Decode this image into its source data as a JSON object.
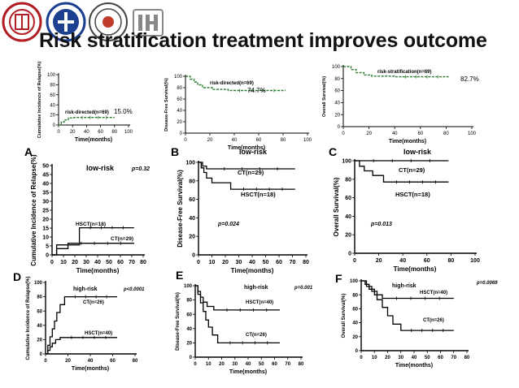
{
  "slide": {
    "title": "Risk stratification treatment improves outcome",
    "logos": [
      {
        "name": "peking-university-seal",
        "color": "#b01e23",
        "text": "PEKING UNIVERSITY 1898"
      },
      {
        "name": "peking-university-people-hospital-seal",
        "color": "#1d3f8f",
        "text": "北京大学人民医院"
      },
      {
        "name": "institute-of-hematology-seal",
        "color": "#333333",
        "text": "INSTITUTE OF HEMATOLOGY PEKING UNIVERSITY"
      }
    ]
  },
  "chart_data": [
    {
      "id": "top1",
      "type": "line",
      "title": "",
      "xlabel": "Time(months)",
      "ylabel": "Cumulative Incidence of Relapse(%)",
      "xlim": [
        0,
        100
      ],
      "ylim": [
        0,
        100
      ],
      "xticks": [
        0,
        20,
        40,
        60,
        80,
        100
      ],
      "yticks": [
        0,
        20,
        40,
        60,
        80,
        100
      ],
      "series": [
        {
          "name": "risk-directed(n=69)",
          "color": "#2e7d32",
          "step": [
            [
              0,
              0
            ],
            [
              4,
              0
            ],
            [
              4,
              6
            ],
            [
              8,
              6
            ],
            [
              8,
              10
            ],
            [
              14,
              10
            ],
            [
              14,
              14
            ],
            [
              22,
              14
            ],
            [
              22,
              15
            ],
            [
              80,
              15
            ]
          ]
        }
      ],
      "annotations": [
        "15.0%"
      ]
    },
    {
      "id": "top2",
      "type": "line",
      "title": "",
      "xlabel": "Time(months)",
      "ylabel": "Disease-Free Survival(%)",
      "xlim": [
        0,
        100
      ],
      "ylim": [
        0,
        100
      ],
      "xticks": [
        0,
        20,
        40,
        60,
        80,
        100
      ],
      "yticks": [
        0,
        20,
        40,
        60,
        80,
        100
      ],
      "series": [
        {
          "name": "risk-directed(n=69)",
          "color": "#2e7d32",
          "step": [
            [
              0,
              100
            ],
            [
              4,
              100
            ],
            [
              4,
              95
            ],
            [
              7,
              95
            ],
            [
              7,
              90
            ],
            [
              10,
              90
            ],
            [
              10,
              85
            ],
            [
              14,
              85
            ],
            [
              14,
              80
            ],
            [
              22,
              80
            ],
            [
              22,
              77
            ],
            [
              35,
              77
            ],
            [
              35,
              75
            ],
            [
              82,
              75
            ]
          ]
        }
      ],
      "annotations": [
        "74.7%"
      ]
    },
    {
      "id": "top3",
      "type": "line",
      "title": "",
      "xlabel": "Time(months)",
      "ylabel": "Overall Survival(%)",
      "xlim": [
        0,
        100
      ],
      "ylim": [
        0,
        100
      ],
      "xticks": [
        0,
        20,
        40,
        60,
        80,
        100
      ],
      "yticks": [
        0,
        20,
        40,
        60,
        80,
        100
      ],
      "series": [
        {
          "name": "risk-stratification(n=69)",
          "color": "#2e7d32",
          "step": [
            [
              0,
              100
            ],
            [
              6,
              100
            ],
            [
              6,
              95
            ],
            [
              10,
              95
            ],
            [
              10,
              90
            ],
            [
              16,
              90
            ],
            [
              16,
              86
            ],
            [
              22,
              86
            ],
            [
              22,
              84
            ],
            [
              40,
              84
            ],
            [
              40,
              83
            ],
            [
              82,
              83
            ]
          ]
        }
      ],
      "annotations": [
        "82.7%"
      ]
    },
    {
      "id": "A",
      "panel": "A",
      "type": "line",
      "title": "low-risk",
      "pvalue": "p=0.32",
      "xlabel": "Time(months)",
      "ylabel": "Cumulative Incidence of Relapse(%)",
      "xlim": [
        0,
        80
      ],
      "ylim": [
        0,
        50
      ],
      "xticks": [
        0,
        10,
        20,
        30,
        40,
        50,
        60,
        70,
        80
      ],
      "yticks": [
        0,
        5,
        10,
        15,
        20,
        25,
        30,
        35,
        40,
        45,
        50
      ],
      "series": [
        {
          "name": "HSCT(n=18)",
          "step": [
            [
              0,
              0
            ],
            [
              4,
              0
            ],
            [
              4,
              5.6
            ],
            [
              24,
              5.6
            ],
            [
              24,
              15.2
            ],
            [
              72,
              15.2
            ]
          ]
        },
        {
          "name": "CT(n=29)",
          "step": [
            [
              0,
              0
            ],
            [
              4,
              0
            ],
            [
              4,
              3.5
            ],
            [
              14,
              3.5
            ],
            [
              14,
              6.5
            ],
            [
              72,
              6.5
            ]
          ]
        }
      ]
    },
    {
      "id": "B",
      "panel": "B",
      "type": "line",
      "title": "low-risk",
      "pvalue": "p=0.024",
      "xlabel": "Time(months)",
      "ylabel": "Disease-Free Survival(%)",
      "xlim": [
        0,
        80
      ],
      "ylim": [
        0,
        100
      ],
      "xticks": [
        0,
        10,
        20,
        30,
        40,
        50,
        60,
        70,
        80
      ],
      "yticks": [
        0,
        20,
        40,
        60,
        80,
        100
      ],
      "series": [
        {
          "name": "CT(n=29)",
          "step": [
            [
              0,
              100
            ],
            [
              3,
              100
            ],
            [
              3,
              96
            ],
            [
              6,
              96
            ],
            [
              6,
              93
            ],
            [
              72,
              93
            ]
          ]
        },
        {
          "name": "HSCT(n=18)",
          "step": [
            [
              0,
              100
            ],
            [
              2,
              100
            ],
            [
              2,
              94
            ],
            [
              4,
              94
            ],
            [
              4,
              89
            ],
            [
              6,
              89
            ],
            [
              6,
              83
            ],
            [
              10,
              83
            ],
            [
              10,
              78
            ],
            [
              24,
              78
            ],
            [
              24,
              71
            ],
            [
              72,
              71
            ]
          ]
        }
      ]
    },
    {
      "id": "C",
      "panel": "C",
      "type": "line",
      "title": "low-risk",
      "pvalue": "p=0.013",
      "xlabel": "Time(months)",
      "ylabel": "Overall Survival(%)",
      "xlim": [
        0,
        100
      ],
      "ylim": [
        0,
        100
      ],
      "xticks": [
        0,
        20,
        40,
        60,
        80,
        100
      ],
      "yticks": [
        0,
        20,
        40,
        60,
        80,
        100
      ],
      "series": [
        {
          "name": "CT(n=29)",
          "step": [
            [
              0,
              100
            ],
            [
              78,
              100
            ]
          ]
        },
        {
          "name": "HSCT(n=18)",
          "step": [
            [
              0,
              100
            ],
            [
              4,
              100
            ],
            [
              4,
              94
            ],
            [
              8,
              94
            ],
            [
              8,
              89
            ],
            [
              15,
              89
            ],
            [
              15,
              84
            ],
            [
              24,
              84
            ],
            [
              24,
              77
            ],
            [
              78,
              77
            ]
          ]
        }
      ]
    },
    {
      "id": "D",
      "panel": "D",
      "type": "line",
      "title": "high-risk",
      "pvalue": "p<0.0001",
      "xlabel": "Time(months)",
      "ylabel": "Cumulative Incidence of Relapse(%)",
      "xlim": [
        0,
        80
      ],
      "ylim": [
        0,
        100
      ],
      "xticks": [
        0,
        20,
        40,
        60,
        80
      ],
      "yticks": [
        0,
        20,
        40,
        60,
        80,
        100
      ],
      "series": [
        {
          "name": "CT(n=26)",
          "step": [
            [
              0,
              0
            ],
            [
              2,
              0
            ],
            [
              2,
              12
            ],
            [
              4,
              12
            ],
            [
              4,
              24
            ],
            [
              6,
              24
            ],
            [
              6,
              35
            ],
            [
              8,
              35
            ],
            [
              8,
              46
            ],
            [
              10,
              46
            ],
            [
              10,
              58
            ],
            [
              13,
              58
            ],
            [
              13,
              69
            ],
            [
              17,
              69
            ],
            [
              17,
              80
            ],
            [
              64,
              80
            ]
          ]
        },
        {
          "name": "HSCT(n=40)",
          "step": [
            [
              0,
              0
            ],
            [
              2,
              0
            ],
            [
              2,
              5
            ],
            [
              4,
              5
            ],
            [
              4,
              10
            ],
            [
              6,
              10
            ],
            [
              6,
              15
            ],
            [
              9,
              15
            ],
            [
              9,
              20
            ],
            [
              13,
              20
            ],
            [
              13,
              23
            ],
            [
              64,
              23
            ]
          ]
        }
      ]
    },
    {
      "id": "E",
      "panel": "E",
      "type": "line",
      "title": "high-risk",
      "pvalue": "p=0.001",
      "xlabel": "Time(months)",
      "ylabel": "Disease-Free Survival(%)",
      "xlim": [
        0,
        80
      ],
      "ylim": [
        0,
        100
      ],
      "xticks": [
        0,
        10,
        20,
        30,
        40,
        50,
        60,
        70,
        80
      ],
      "yticks": [
        0,
        20,
        40,
        60,
        80,
        100
      ],
      "series": [
        {
          "name": "HSCT(n=40)",
          "step": [
            [
              0,
              100
            ],
            [
              2,
              100
            ],
            [
              2,
              92
            ],
            [
              4,
              92
            ],
            [
              4,
              84
            ],
            [
              6,
              84
            ],
            [
              6,
              77
            ],
            [
              9,
              77
            ],
            [
              9,
              71
            ],
            [
              14,
              71
            ],
            [
              14,
              66
            ],
            [
              64,
              66
            ]
          ]
        },
        {
          "name": "CT(n=26)",
          "step": [
            [
              0,
              100
            ],
            [
              2,
              100
            ],
            [
              2,
              88
            ],
            [
              4,
              88
            ],
            [
              4,
              76
            ],
            [
              6,
              76
            ],
            [
              6,
              64
            ],
            [
              8,
              64
            ],
            [
              8,
              52
            ],
            [
              10,
              52
            ],
            [
              10,
              42
            ],
            [
              13,
              42
            ],
            [
              13,
              31
            ],
            [
              17,
              31
            ],
            [
              17,
              20
            ],
            [
              64,
              20
            ]
          ]
        }
      ]
    },
    {
      "id": "F",
      "panel": "F",
      "type": "line",
      "title": "high-risk",
      "pvalue": "p=0.0069",
      "xlabel": "Time(months)",
      "ylabel": "Overall Survival(%)",
      "xlim": [
        0,
        80
      ],
      "ylim": [
        0,
        100
      ],
      "xticks": [
        0,
        10,
        20,
        30,
        40,
        50,
        60,
        70,
        80
      ],
      "yticks": [
        0,
        20,
        40,
        60,
        80,
        100
      ],
      "series": [
        {
          "name": "HSCT(n=40)",
          "step": [
            [
              0,
              100
            ],
            [
              3,
              100
            ],
            [
              3,
              95
            ],
            [
              6,
              95
            ],
            [
              6,
              88
            ],
            [
              10,
              88
            ],
            [
              10,
              80
            ],
            [
              16,
              80
            ],
            [
              16,
              75
            ],
            [
              70,
              75
            ]
          ]
        },
        {
          "name": "CT(n=26)",
          "step": [
            [
              0,
              100
            ],
            [
              4,
              100
            ],
            [
              4,
              92
            ],
            [
              8,
              92
            ],
            [
              8,
              85
            ],
            [
              12,
              85
            ],
            [
              12,
              73
            ],
            [
              16,
              73
            ],
            [
              16,
              62
            ],
            [
              20,
              62
            ],
            [
              20,
              50
            ],
            [
              24,
              50
            ],
            [
              24,
              38
            ],
            [
              30,
              38
            ],
            [
              30,
              29
            ],
            [
              70,
              29
            ]
          ]
        }
      ]
    }
  ]
}
